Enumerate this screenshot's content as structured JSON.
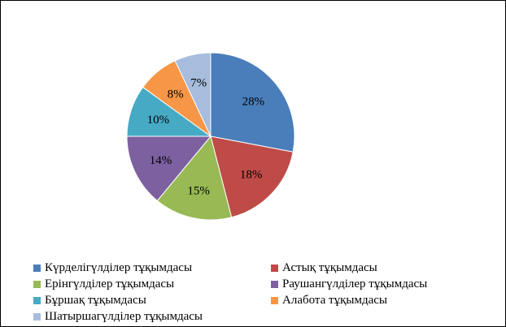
{
  "chart_data": {
    "type": "pie",
    "title": "",
    "categories": [
      "Күрделігүлділер тұқымдасы",
      "Астық тұқымдасы",
      "Ерінгүлділер тұқымдасы",
      "Раушангүлділер тұқымдасы",
      "Бұршақ тұқымдасы",
      "Алабота тұқымдасы",
      "Шатыршагүлділер тұқымдасы"
    ],
    "values": [
      28,
      18,
      15,
      14,
      10,
      8,
      7
    ],
    "labels": [
      "28%",
      "18%",
      "15%",
      "14%",
      "10%",
      "8%",
      "7%"
    ],
    "colors": [
      "#4A7EBB",
      "#BE4B48",
      "#98B954",
      "#7D60A0",
      "#46AAC5",
      "#F69646",
      "#A7BDDD"
    ],
    "legend_position": "bottom",
    "start_angle": "12 o'clock",
    "direction": "clockwise"
  }
}
